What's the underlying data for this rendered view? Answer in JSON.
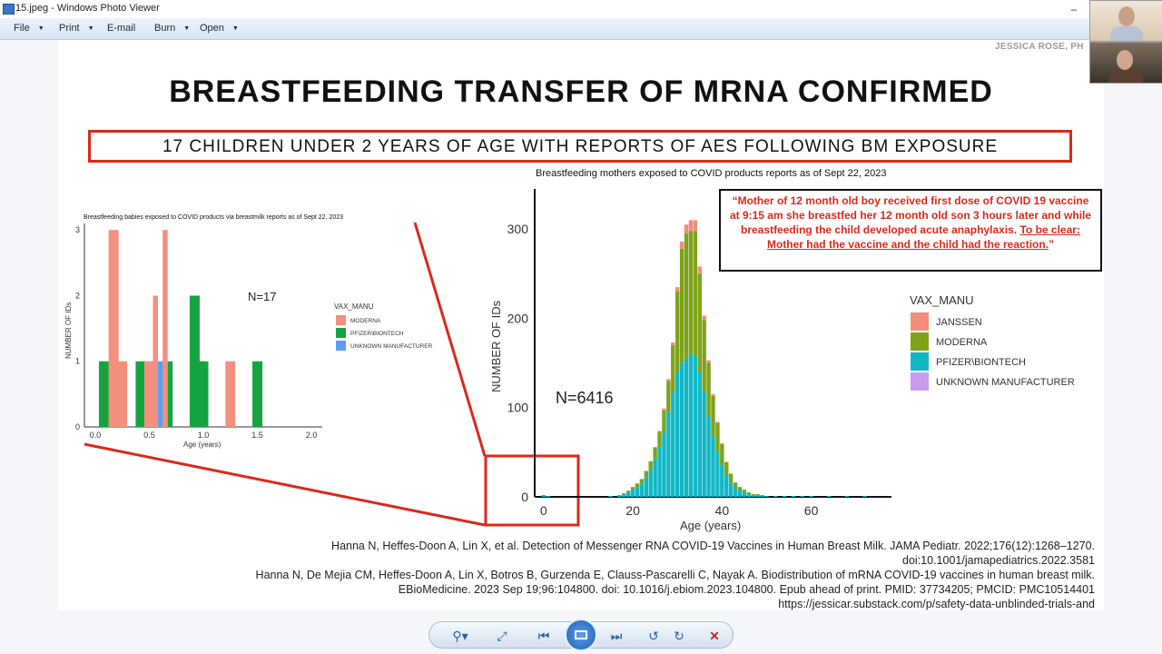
{
  "window": {
    "title": "15.jpeg - Windows Photo Viewer",
    "controls": {
      "minimize": "–",
      "maximize": "□"
    }
  },
  "menu": [
    {
      "label": "File",
      "dropdown": true
    },
    {
      "label": "Print",
      "dropdown": true
    },
    {
      "label": "E-mail",
      "dropdown": false
    },
    {
      "label": "Burn",
      "dropdown": true
    },
    {
      "label": "Open",
      "dropdown": true
    }
  ],
  "slide": {
    "author": "JESSICA ROSE, PH",
    "title": "BREASTFEEDING TRANSFER OF MRNA CONFIRMED",
    "subtitle": "17 CHILDREN UNDER 2 YEARS OF AGE WITH REPORTS OF AES FOLLOWING BM EXPOSURE",
    "quote_part1": "“Mother of 12 month old boy received first dose of COVID 19 vaccine at 9:15 am she breastfed her 12 month old son 3 hours later and while breastfeeding the child developed acute anaphylaxis.",
    "quote_part2": "To be clear: Mother had the vaccine and the child had the reaction.",
    "quote_part3": "”",
    "citations": [
      "Hanna N, Heffes-Doon A, Lin X, et al. Detection of Messenger RNA COVID-19 Vaccines in Human Breast Milk. JAMA Pediatr. 2022;176(12):1268–1270.",
      "doi:10.1001/jamapediatrics.2022.3581",
      "Hanna N, De Mejia CM, Heffes-Doon A, Lin X, Botros B, Gurzenda E, Clauss-Pascarelli C, Nayak A. Biodistribution of mRNA COVID-19 vaccines in human breast milk.",
      "EBioMedicine. 2023 Sep 19;96:104800. doi: 10.1016/j.ebiom.2023.104800. Epub ahead of print. PMID: 37734205; PMCID: PMC10514401",
      "https://jessicar.substack.com/p/safety-data-unblinded-trials-and"
    ]
  },
  "colors": {
    "janssen": "#f28e7b",
    "moderna": "#7ea31a",
    "pfizer": "#12b7c6",
    "unknown": "#c99af0",
    "moderna_small": "#f3907e",
    "pfizer_small": "#16a441",
    "unknown_small": "#5b9ef2",
    "accent_red": "#d9291c"
  },
  "chart_data": [
    {
      "type": "bar",
      "title": "Breastfeeding babies exposed to COVID products via breastmilk reports as of Sept 22, 2023",
      "xlabel": "Age (years)",
      "ylabel": "NUMBER OF IDs",
      "xlim": [
        -0.1,
        2.1
      ],
      "ylim": [
        0,
        3.1
      ],
      "x_ticks": [
        "0.0",
        "0.5",
        "1.0",
        "1.5",
        "2.0"
      ],
      "y_ticks": [
        "0",
        "1",
        "2",
        "3"
      ],
      "annotation": "N=17",
      "legend_title": "VAX_MANU",
      "legend": [
        "MODERNA",
        "PFIZER\\BIONTECH",
        "UNKNOWN MANUFACTURER"
      ],
      "bars": [
        {
          "x": 0.08,
          "series": "PFIZER\\BIONTECH",
          "value": 1
        },
        {
          "x": 0.17,
          "series": "MODERNA",
          "value": 3
        },
        {
          "x": 0.25,
          "series": "MODERNA",
          "value": 1
        },
        {
          "x": 0.42,
          "series": "PFIZER\\BIONTECH",
          "value": 1
        },
        {
          "x": 0.5,
          "series": "MODERNA",
          "value": 1
        },
        {
          "x": 0.58,
          "series": "MODERNA",
          "value": 2
        },
        {
          "x": 0.58,
          "series": "UNKNOWN MANUFACTURER",
          "value": 1
        },
        {
          "x": 0.67,
          "series": "MODERNA",
          "value": 3
        },
        {
          "x": 0.67,
          "series": "PFIZER\\BIONTECH",
          "value": 1
        },
        {
          "x": 0.92,
          "series": "PFIZER\\BIONTECH",
          "value": 2
        },
        {
          "x": 1.0,
          "series": "PFIZER\\BIONTECH",
          "value": 1
        },
        {
          "x": 1.25,
          "series": "MODERNA",
          "value": 1
        },
        {
          "x": 1.5,
          "series": "PFIZER\\BIONTECH",
          "value": 1
        }
      ]
    },
    {
      "type": "bar",
      "title": "Breastfeeding mothers exposed to COVID products reports as of Sept 22, 2023",
      "xlabel": "Age (years)",
      "ylabel": "NUMBER OF IDs",
      "xlim": [
        -2,
        78
      ],
      "ylim": [
        0,
        345
      ],
      "x_ticks": [
        "0",
        "20",
        "40",
        "60"
      ],
      "y_ticks": [
        "0",
        "100",
        "200",
        "300"
      ],
      "annotation": "N=6416",
      "legend_title": "VAX_MANU",
      "legend": [
        "JANSSEN",
        "MODERNA",
        "PFIZER\\BIONTECH",
        "UNKNOWN MANUFACTURER"
      ],
      "ages": [
        0,
        1,
        15,
        17,
        18,
        19,
        20,
        21,
        22,
        23,
        24,
        25,
        26,
        27,
        28,
        29,
        30,
        31,
        32,
        33,
        34,
        35,
        36,
        37,
        38,
        39,
        40,
        41,
        42,
        43,
        44,
        45,
        46,
        47,
        48,
        49,
        50,
        52,
        54,
        56,
        58,
        60,
        64,
        68,
        72
      ],
      "pfizer_biontech": [
        2,
        1,
        1,
        2,
        3,
        5,
        8,
        11,
        15,
        22,
        30,
        42,
        55,
        72,
        95,
        118,
        140,
        150,
        155,
        160,
        158,
        140,
        118,
        90,
        68,
        50,
        36,
        24,
        16,
        10,
        7,
        5,
        3,
        2,
        2,
        1,
        1,
        1,
        1,
        1,
        1,
        1,
        1,
        1,
        1
      ],
      "moderna": [
        0,
        0,
        0,
        0,
        1,
        2,
        3,
        4,
        5,
        7,
        10,
        13,
        18,
        25,
        35,
        52,
        90,
        128,
        140,
        138,
        140,
        110,
        80,
        60,
        45,
        33,
        23,
        15,
        10,
        6,
        4,
        3,
        2,
        1,
        1,
        1,
        0,
        0,
        0,
        0,
        0,
        0,
        0,
        0,
        0
      ],
      "janssen": [
        0,
        0,
        0,
        0,
        0,
        0,
        0,
        0,
        0,
        0,
        0,
        1,
        1,
        2,
        2,
        3,
        5,
        8,
        10,
        12,
        12,
        8,
        5,
        3,
        2,
        1,
        1,
        0,
        0,
        0,
        0,
        0,
        0,
        0,
        0,
        0,
        0,
        0,
        0,
        0,
        0,
        0,
        0,
        0,
        0
      ]
    }
  ]
}
